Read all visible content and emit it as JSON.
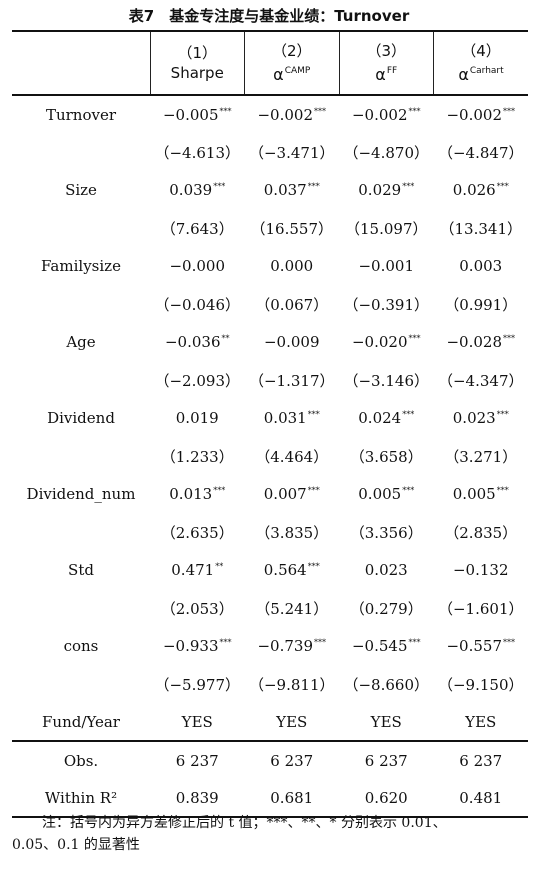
{
  "title": "表7　基金专注度与基金业绩：Turnover",
  "columns": [
    {
      "num": "（1）",
      "label": "Sharpe",
      "sup": ""
    },
    {
      "num": "（2）",
      "label": "α",
      "sup": "CAMP"
    },
    {
      "num": "（3）",
      "label": "α",
      "sup": "FF"
    },
    {
      "num": "（4）",
      "label": "α",
      "sup": "Carhart"
    }
  ],
  "rows": [
    {
      "label": "Turnover",
      "cells": [
        {
          "v": "−0.005",
          "s": "***"
        },
        {
          "v": "−0.002",
          "s": "***"
        },
        {
          "v": "−0.002",
          "s": "***"
        },
        {
          "v": "−0.002",
          "s": "***"
        }
      ]
    },
    {
      "label": "",
      "cells": [
        {
          "v": "（−4.613）",
          "s": ""
        },
        {
          "v": "（−3.471）",
          "s": ""
        },
        {
          "v": "（−4.870）",
          "s": ""
        },
        {
          "v": "（−4.847）",
          "s": ""
        }
      ]
    },
    {
      "label": "Size",
      "cells": [
        {
          "v": "0.039",
          "s": "***"
        },
        {
          "v": "0.037",
          "s": "***"
        },
        {
          "v": "0.029",
          "s": "***"
        },
        {
          "v": "0.026",
          "s": "***"
        }
      ]
    },
    {
      "label": "",
      "cells": [
        {
          "v": "（7.643）",
          "s": ""
        },
        {
          "v": "（16.557）",
          "s": ""
        },
        {
          "v": "（15.097）",
          "s": ""
        },
        {
          "v": "（13.341）",
          "s": ""
        }
      ]
    },
    {
      "label": "Familysize",
      "cells": [
        {
          "v": "−0.000",
          "s": ""
        },
        {
          "v": "0.000",
          "s": ""
        },
        {
          "v": "−0.001",
          "s": ""
        },
        {
          "v": "0.003",
          "s": ""
        }
      ]
    },
    {
      "label": "",
      "cells": [
        {
          "v": "（−0.046）",
          "s": ""
        },
        {
          "v": "（0.067）",
          "s": ""
        },
        {
          "v": "（−0.391）",
          "s": ""
        },
        {
          "v": "（0.991）",
          "s": ""
        }
      ]
    },
    {
      "label": "Age",
      "cells": [
        {
          "v": "−0.036",
          "s": "**"
        },
        {
          "v": "−0.009",
          "s": ""
        },
        {
          "v": "−0.020",
          "s": "***"
        },
        {
          "v": "−0.028",
          "s": "***"
        }
      ]
    },
    {
      "label": "",
      "cells": [
        {
          "v": "（−2.093）",
          "s": ""
        },
        {
          "v": "（−1.317）",
          "s": ""
        },
        {
          "v": "（−3.146）",
          "s": ""
        },
        {
          "v": "（−4.347）",
          "s": ""
        }
      ]
    },
    {
      "label": "Dividend",
      "cells": [
        {
          "v": "0.019",
          "s": ""
        },
        {
          "v": "0.031",
          "s": "***"
        },
        {
          "v": "0.024",
          "s": "***"
        },
        {
          "v": "0.023",
          "s": "***"
        }
      ]
    },
    {
      "label": "",
      "cells": [
        {
          "v": "（1.233）",
          "s": ""
        },
        {
          "v": "（4.464）",
          "s": ""
        },
        {
          "v": "（3.658）",
          "s": ""
        },
        {
          "v": "（3.271）",
          "s": ""
        }
      ]
    },
    {
      "label": "Dividend_num",
      "cells": [
        {
          "v": "0.013",
          "s": "***"
        },
        {
          "v": "0.007",
          "s": "***"
        },
        {
          "v": "0.005",
          "s": "***"
        },
        {
          "v": "0.005",
          "s": "***"
        }
      ]
    },
    {
      "label": "",
      "cells": [
        {
          "v": "（2.635）",
          "s": ""
        },
        {
          "v": "（3.835）",
          "s": ""
        },
        {
          "v": "（3.356）",
          "s": ""
        },
        {
          "v": "（2.835）",
          "s": ""
        }
      ]
    },
    {
      "label": "Std",
      "cells": [
        {
          "v": "0.471",
          "s": "**"
        },
        {
          "v": "0.564",
          "s": "***"
        },
        {
          "v": "0.023",
          "s": ""
        },
        {
          "v": "−0.132",
          "s": ""
        }
      ]
    },
    {
      "label": "",
      "cells": [
        {
          "v": "（2.053）",
          "s": ""
        },
        {
          "v": "（5.241）",
          "s": ""
        },
        {
          "v": "（0.279）",
          "s": ""
        },
        {
          "v": "（−1.601）",
          "s": ""
        }
      ]
    },
    {
      "label": "cons",
      "cells": [
        {
          "v": "−0.933",
          "s": "***"
        },
        {
          "v": "−0.739",
          "s": "***"
        },
        {
          "v": "−0.545",
          "s": "***"
        },
        {
          "v": "−0.557",
          "s": "***"
        }
      ]
    },
    {
      "label": "",
      "cells": [
        {
          "v": "（−5.977）",
          "s": ""
        },
        {
          "v": "（−9.811）",
          "s": ""
        },
        {
          "v": "（−8.660）",
          "s": ""
        },
        {
          "v": "（−9.150）",
          "s": ""
        }
      ]
    },
    {
      "label": "Fund/Year",
      "cells": [
        {
          "v": "YES",
          "s": ""
        },
        {
          "v": "YES",
          "s": ""
        },
        {
          "v": "YES",
          "s": ""
        },
        {
          "v": "YES",
          "s": ""
        }
      ]
    }
  ],
  "summary_rows": [
    {
      "label": "Obs.",
      "cells": [
        "6 237",
        "6 237",
        "6 237",
        "6 237"
      ]
    },
    {
      "label": "Within R²",
      "cells": [
        "0.839",
        "0.681",
        "0.620",
        "0.481"
      ]
    }
  ],
  "note_line1": "注：括号内为异方差修正后的 t 值；***、**、* 分别表示 0.01、",
  "note_line2": "0.05、0.1 的显著性"
}
